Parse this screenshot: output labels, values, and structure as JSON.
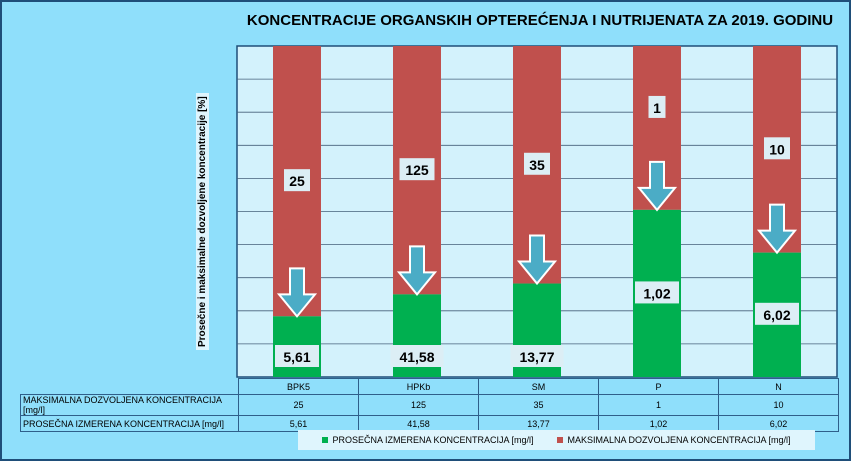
{
  "chart_data": {
    "type": "bar",
    "stacked": "percent",
    "title": "KONCENTRACIJE ORGANSKIH OPTEREĆENJA  I NUTRIJENATA ZA 2019. GODINU",
    "ylabel": "Prosečne  i maksimalne dozvoljene koncentracije  [%]",
    "xlabel": "",
    "ylim": [
      0,
      100
    ],
    "grid": true,
    "legend_placement": "bottom",
    "categories": [
      "BPK5",
      "HPKb",
      "SM",
      "P",
      "N"
    ],
    "series": [
      {
        "name": "PROSEČNA IZMERENA KONCENTRACIJA [mg/l]",
        "color": "#00b050",
        "values": [
          5.61,
          41.58,
          13.77,
          1.02,
          6.02
        ],
        "labels": [
          "5,61",
          "41,58",
          "13,77",
          "1,02",
          "6,02"
        ]
      },
      {
        "name": "MAKSIMALNA DOZVOLJENA KONCENTRACIJA [mg/l]",
        "color": "#c0504d",
        "values": [
          25,
          125,
          35,
          1,
          10
        ],
        "labels": [
          "25",
          "125",
          "35",
          "1",
          "10"
        ]
      }
    ]
  },
  "table": {
    "row_labels": [
      "MAKSIMALNA DOZVOLJENA KONCENTRACIJA [mg/l]",
      "PROSEČNA IZMERENA KONCENTRACIJA [mg/l]"
    ]
  }
}
